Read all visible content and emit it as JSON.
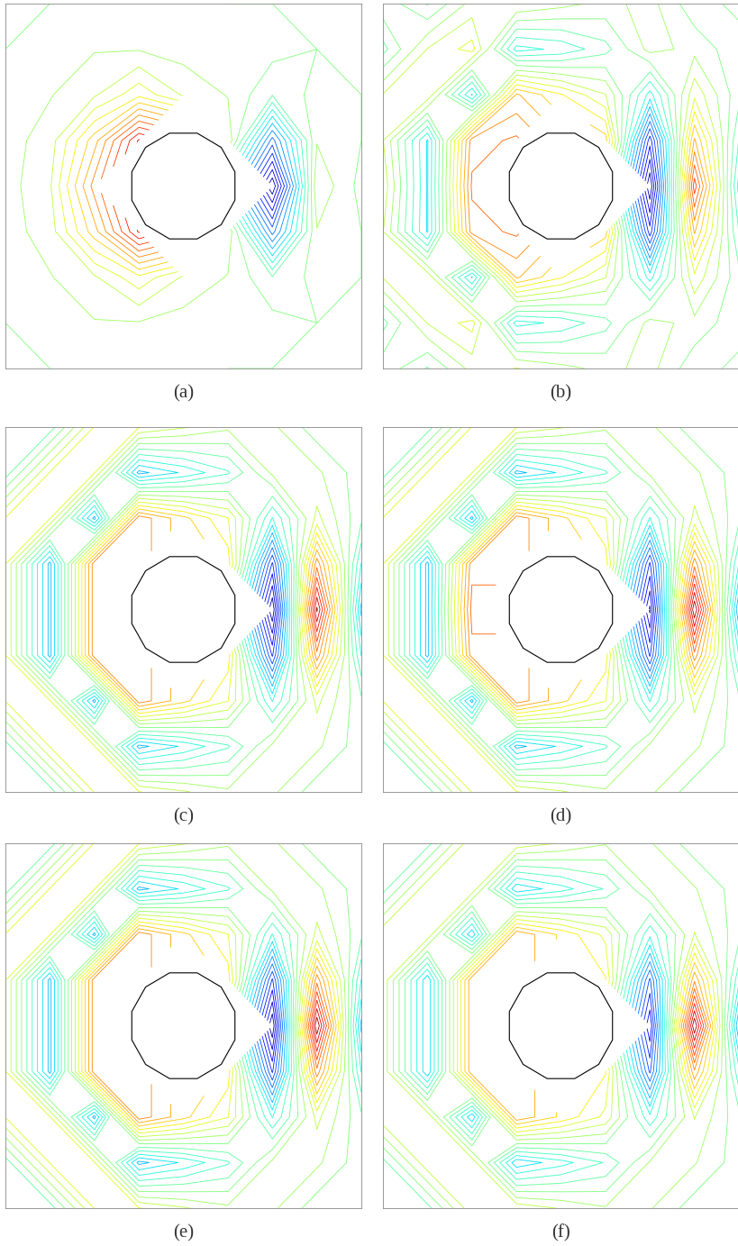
{
  "chart_data": [
    {
      "type": "contour",
      "title": "(a)",
      "tick_labels": false,
      "xlim": [
        -1,
        1
      ],
      "ylim": [
        -1,
        1
      ],
      "x": [
        -1,
        -0.75,
        -0.5,
        -0.25,
        0,
        0.25,
        0.5,
        0.75,
        1
      ],
      "y": [
        -1,
        -0.75,
        -0.5,
        -0.25,
        0,
        0.25,
        0.5,
        0.75,
        1
      ],
      "values": [
        [
          0.0,
          0.0,
          0.02,
          0.02,
          0.02,
          0.0,
          0.0,
          0.0,
          0.0
        ],
        [
          0.0,
          0.02,
          0.05,
          0.05,
          0.03,
          0.02,
          0.02,
          0.0,
          0.0
        ],
        [
          0.02,
          0.05,
          0.1,
          0.2,
          0.1,
          0.05,
          -0.05,
          0.02,
          0.0
        ],
        [
          0.03,
          0.08,
          0.3,
          0.6,
          null,
          0.1,
          -0.4,
          0.05,
          0.0
        ],
        [
          0.03,
          0.1,
          0.4,
          null,
          null,
          null,
          -0.7,
          0.1,
          -0.02
        ],
        [
          0.03,
          0.08,
          0.3,
          0.6,
          null,
          0.1,
          -0.4,
          0.05,
          0.0
        ],
        [
          0.02,
          0.05,
          0.1,
          0.2,
          0.1,
          0.05,
          -0.05,
          0.02,
          0.0
        ],
        [
          0.0,
          0.02,
          0.05,
          0.05,
          0.03,
          0.02,
          0.02,
          0.0,
          0.0
        ],
        [
          0.0,
          0.0,
          0.02,
          0.02,
          0.02,
          0.0,
          0.0,
          0.0,
          0.0
        ]
      ]
    },
    {
      "type": "contour",
      "title": "(b)",
      "tick_labels": false,
      "xlim": [
        -1,
        1
      ],
      "ylim": [
        -1,
        1
      ],
      "x": [
        -1,
        -0.75,
        -0.5,
        -0.25,
        0,
        0.25,
        0.5,
        0.75,
        1
      ],
      "y": [
        -1,
        -0.75,
        -0.5,
        -0.25,
        0,
        0.25,
        0.5,
        0.75,
        1
      ],
      "values": [
        [
          0.05,
          -0.08,
          0.1,
          0.15,
          0.1,
          0.05,
          0.1,
          -0.05,
          0.03
        ],
        [
          -0.1,
          0.15,
          0.25,
          -0.25,
          -0.2,
          -0.1,
          0.1,
          0.05,
          -0.05
        ],
        [
          0.15,
          0.2,
          -0.3,
          0.45,
          0.3,
          0.15,
          -0.25,
          0.2,
          -0.05
        ],
        [
          0.15,
          -0.3,
          0.55,
          0.6,
          null,
          0.4,
          -0.7,
          0.45,
          -0.15
        ],
        [
          0.2,
          -0.3,
          0.6,
          null,
          null,
          null,
          -0.95,
          0.7,
          -0.25
        ],
        [
          0.15,
          -0.3,
          0.55,
          0.6,
          null,
          0.4,
          -0.7,
          0.45,
          -0.15
        ],
        [
          0.15,
          0.2,
          -0.3,
          0.45,
          0.3,
          0.15,
          -0.25,
          0.2,
          -0.05
        ],
        [
          -0.1,
          0.15,
          0.25,
          -0.25,
          -0.2,
          -0.1,
          0.1,
          0.05,
          -0.05
        ],
        [
          0.05,
          -0.08,
          0.1,
          0.15,
          0.1,
          0.05,
          0.1,
          -0.05,
          0.03
        ]
      ]
    },
    {
      "type": "contour",
      "title": "(c)",
      "tick_labels": false,
      "xlim": [
        -1,
        1
      ],
      "ylim": [
        -1,
        1
      ],
      "x": [
        -1,
        -0.75,
        -0.5,
        -0.25,
        0,
        0.25,
        0.5,
        0.75,
        1
      ],
      "y": [
        -1,
        -0.75,
        -0.5,
        -0.25,
        0,
        0.25,
        0.5,
        0.75,
        1
      ],
      "values": [
        [
          -0.1,
          -0.1,
          0.2,
          0.2,
          0.14,
          0.08,
          0.08,
          -0.04,
          -0.04
        ],
        [
          -0.1,
          0.2,
          0.2,
          -0.35,
          -0.25,
          -0.14,
          0.08,
          0.08,
          -0.04
        ],
        [
          0.2,
          0.2,
          -0.35,
          0.5,
          0.35,
          0.2,
          -0.2,
          0.15,
          -0.05
        ],
        [
          0.2,
          -0.35,
          0.5,
          0.5,
          null,
          0.3,
          -0.6,
          0.5,
          -0.2
        ],
        [
          0.2,
          -0.35,
          0.5,
          null,
          null,
          null,
          -0.85,
          0.8,
          -0.35
        ],
        [
          0.2,
          -0.35,
          0.5,
          0.5,
          null,
          0.3,
          -0.6,
          0.5,
          -0.2
        ],
        [
          0.2,
          0.2,
          -0.35,
          0.5,
          0.35,
          0.2,
          -0.2,
          0.15,
          -0.05
        ],
        [
          -0.1,
          0.2,
          0.2,
          -0.35,
          -0.25,
          -0.14,
          0.08,
          0.08,
          -0.04
        ],
        [
          -0.1,
          -0.1,
          0.2,
          0.2,
          0.14,
          0.08,
          0.08,
          -0.04,
          -0.04
        ]
      ]
    },
    {
      "type": "contour",
      "title": "(d)",
      "tick_labels": false,
      "xlim": [
        -1,
        1
      ],
      "ylim": [
        -1,
        1
      ],
      "x": [
        -1,
        -0.75,
        -0.5,
        -0.25,
        0,
        0.25,
        0.5,
        0.75,
        1
      ],
      "y": [
        -1,
        -0.75,
        -0.5,
        -0.25,
        0,
        0.25,
        0.5,
        0.75,
        1
      ],
      "values": [
        [
          -0.1,
          -0.1,
          0.2,
          0.2,
          0.14,
          0.08,
          0.08,
          -0.04,
          -0.04
        ],
        [
          -0.1,
          0.2,
          0.2,
          -0.35,
          -0.25,
          -0.14,
          0.08,
          0.08,
          -0.04
        ],
        [
          0.2,
          0.2,
          -0.35,
          0.5,
          0.35,
          0.2,
          -0.2,
          0.15,
          -0.05
        ],
        [
          0.2,
          -0.35,
          0.5,
          0.5,
          null,
          0.3,
          -0.6,
          0.5,
          -0.2
        ],
        [
          0.2,
          -0.35,
          0.55,
          null,
          null,
          null,
          -0.8,
          0.85,
          -0.4
        ],
        [
          0.2,
          -0.35,
          0.5,
          0.5,
          null,
          0.3,
          -0.6,
          0.5,
          -0.2
        ],
        [
          0.2,
          0.2,
          -0.35,
          0.5,
          0.35,
          0.2,
          -0.2,
          0.15,
          -0.05
        ],
        [
          -0.1,
          0.2,
          0.2,
          -0.35,
          -0.25,
          -0.14,
          0.08,
          0.08,
          -0.04
        ],
        [
          -0.1,
          -0.1,
          0.2,
          0.2,
          0.14,
          0.08,
          0.08,
          -0.04,
          -0.04
        ]
      ]
    },
    {
      "type": "contour",
      "title": "(e)",
      "tick_labels": false,
      "xlim": [
        -1,
        1
      ],
      "ylim": [
        -1,
        1
      ],
      "x": [
        -1,
        -0.75,
        -0.5,
        -0.25,
        0,
        0.25,
        0.5,
        0.75,
        1
      ],
      "y": [
        -1,
        -0.75,
        -0.5,
        -0.25,
        0,
        0.25,
        0.5,
        0.75,
        1
      ],
      "values": [
        [
          -0.1,
          -0.1,
          0.2,
          0.2,
          0.14,
          0.08,
          0.08,
          -0.04,
          -0.04
        ],
        [
          -0.1,
          0.2,
          0.2,
          -0.35,
          -0.25,
          -0.14,
          0.08,
          0.08,
          -0.04
        ],
        [
          0.2,
          0.2,
          -0.35,
          0.5,
          0.35,
          0.2,
          -0.2,
          0.15,
          -0.05
        ],
        [
          0.2,
          -0.35,
          0.5,
          0.5,
          null,
          0.3,
          -0.6,
          0.5,
          -0.2
        ],
        [
          0.2,
          -0.35,
          0.5,
          null,
          null,
          null,
          -0.85,
          0.85,
          -0.35
        ],
        [
          0.2,
          -0.35,
          0.5,
          0.5,
          null,
          0.3,
          -0.6,
          0.5,
          -0.2
        ],
        [
          0.2,
          0.2,
          -0.35,
          0.5,
          0.35,
          0.2,
          -0.2,
          0.15,
          -0.05
        ],
        [
          -0.1,
          0.2,
          0.2,
          -0.35,
          -0.25,
          -0.14,
          0.08,
          0.08,
          -0.04
        ],
        [
          -0.1,
          -0.1,
          0.2,
          0.2,
          0.14,
          0.08,
          0.08,
          -0.04,
          -0.04
        ]
      ]
    },
    {
      "type": "contour",
      "title": "(f)",
      "tick_labels": false,
      "xlim": [
        -1,
        1
      ],
      "ylim": [
        -1,
        1
      ],
      "x": [
        -1,
        -0.75,
        -0.5,
        -0.25,
        0,
        0.25,
        0.5,
        0.75,
        1
      ],
      "y": [
        -1,
        -0.75,
        -0.5,
        -0.25,
        0,
        0.25,
        0.5,
        0.75,
        1
      ],
      "values": [
        [
          -0.1,
          -0.1,
          0.2,
          0.2,
          0.14,
          0.08,
          0.08,
          -0.04,
          -0.04
        ],
        [
          -0.1,
          0.2,
          0.2,
          -0.35,
          -0.25,
          -0.14,
          0.08,
          0.08,
          -0.04
        ],
        [
          0.2,
          0.2,
          -0.35,
          0.5,
          0.35,
          0.2,
          -0.2,
          0.15,
          -0.05
        ],
        [
          0.2,
          -0.35,
          0.5,
          0.5,
          null,
          0.3,
          -0.6,
          0.5,
          -0.2
        ],
        [
          0.2,
          -0.35,
          0.5,
          null,
          null,
          null,
          -0.8,
          0.95,
          -0.45
        ],
        [
          0.2,
          -0.35,
          0.5,
          0.5,
          null,
          0.3,
          -0.6,
          0.5,
          -0.2
        ],
        [
          0.2,
          0.2,
          -0.35,
          0.5,
          0.35,
          0.2,
          -0.2,
          0.15,
          -0.05
        ],
        [
          -0.1,
          0.2,
          0.2,
          -0.35,
          -0.25,
          -0.14,
          0.08,
          0.08,
          -0.04
        ],
        [
          -0.1,
          -0.1,
          0.2,
          0.2,
          0.14,
          0.08,
          0.08,
          -0.04,
          -0.04
        ]
      ]
    }
  ]
}
